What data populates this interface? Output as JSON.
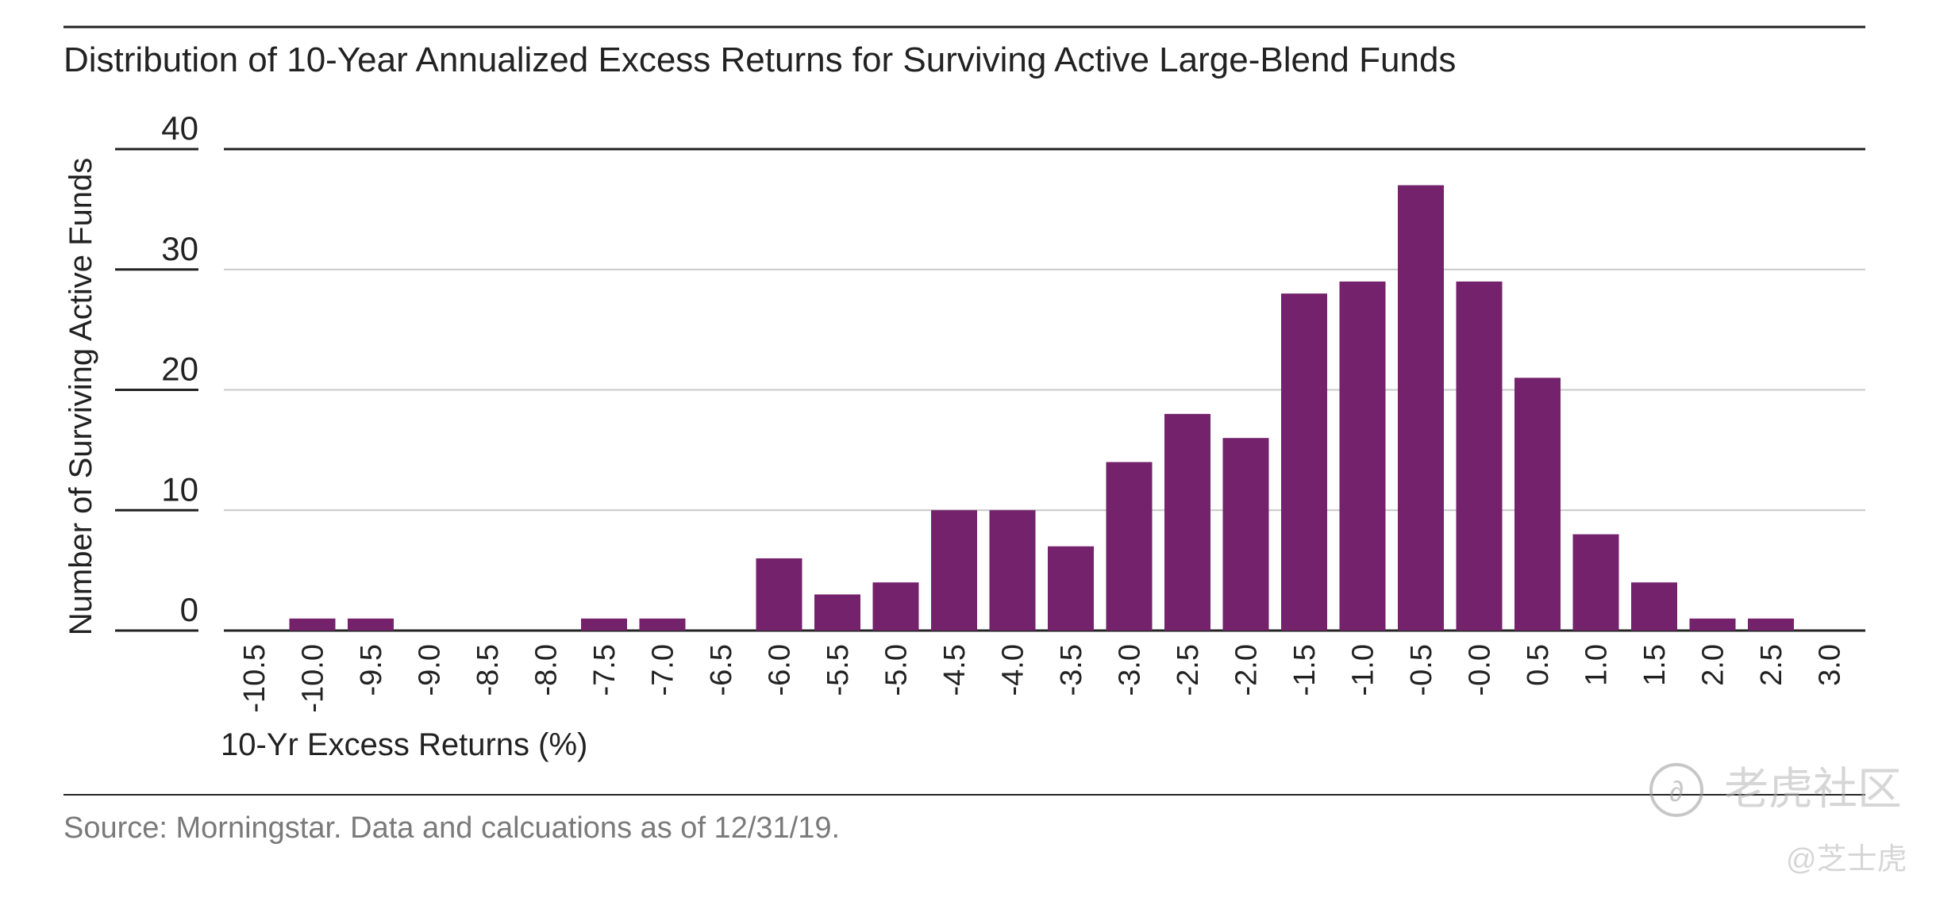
{
  "chart_data": {
    "type": "bar",
    "title": "Distribution of 10-Year Annualized Excess Returns for Surviving Active Large-Blend Funds",
    "xlabel": "10-Yr Excess Returns (%)",
    "ylabel": "Number of Surviving Active Funds",
    "source": "Source: Morningstar. Data and calcuations as of 12/31/19.",
    "ylim": [
      0,
      40
    ],
    "yticks": [
      "0",
      "10",
      "20",
      "30",
      "40"
    ],
    "grid": true,
    "categories": [
      "-10.5",
      "-10.0",
      "-9.5",
      "-9.0",
      "-8.5",
      "-8.0",
      "-7.5",
      "-7.0",
      "-6.5",
      "-6.0",
      "-5.5",
      "-5.0",
      "-4.5",
      "-4.0",
      "-3.5",
      "-3.0",
      "-2.5",
      "-2.0",
      "-1.5",
      "-1.0",
      "-0.5",
      "-0.0",
      "0.5",
      "1.0",
      "1.5",
      "2.0",
      "2.5",
      "3.0"
    ],
    "values": [
      0,
      1,
      1,
      0,
      0,
      0,
      1,
      1,
      0,
      6,
      3,
      4,
      10,
      10,
      7,
      14,
      18,
      16,
      28,
      29,
      37,
      29,
      21,
      8,
      4,
      1,
      1,
      0
    ],
    "colors": {
      "bar": "#74226c",
      "grid": "#c8c8c8",
      "rule": "#222222",
      "text": "#222222",
      "source_text": "#7a7a7a"
    }
  },
  "watermark": {
    "brand": "老虎社区",
    "handle": "@芝士虎"
  }
}
